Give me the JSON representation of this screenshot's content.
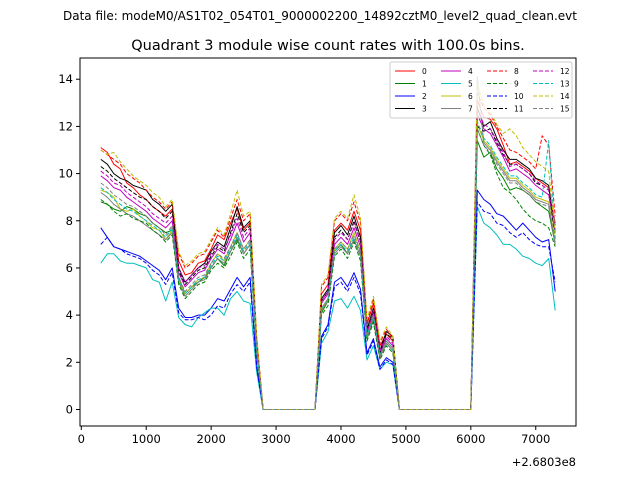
{
  "chart_data": {
    "type": "line",
    "suptitle": "Data file: modeM0/AS1T02_054T01_9000002200_14892cztM0_level2_quad_clean.evt",
    "title": "Quadrant 3 module wise count rates with 100.0s bins.",
    "xlabel": "",
    "ylabel": "",
    "x_offset_label": "+2.6803e8",
    "xlim": [
      -20,
      7620
    ],
    "ylim": [
      -0.7,
      14.9
    ],
    "xticks": [
      "0",
      "1000",
      "2000",
      "3000",
      "4000",
      "5000",
      "6000",
      "7000"
    ],
    "yticks": [
      "0",
      "2",
      "4",
      "6",
      "8",
      "10",
      "12",
      "14"
    ],
    "legend_position": "top-right",
    "grid": false,
    "x": [
      300,
      400,
      500,
      600,
      700,
      800,
      900,
      1000,
      1100,
      1200,
      1300,
      1400,
      1500,
      1600,
      1700,
      1800,
      1900,
      2000,
      2100,
      2200,
      2300,
      2400,
      2500,
      2600,
      2700,
      2800,
      2900,
      3000,
      3100,
      3200,
      3300,
      3400,
      3500,
      3600,
      3700,
      3800,
      3900,
      4000,
      4100,
      4200,
      4300,
      4400,
      4500,
      4600,
      4700,
      4800,
      4900,
      5000,
      5100,
      5200,
      5300,
      5400,
      5500,
      5600,
      5700,
      5800,
      5900,
      6000,
      6100,
      6200,
      6300,
      6400,
      6500,
      6600,
      6700,
      6800,
      6900,
      7000,
      7100,
      7200,
      7300
    ],
    "series": [
      {
        "name": "0",
        "color": "#ff0000",
        "dashed": false,
        "values": [
          11.1,
          10.9,
          10.4,
          10.2,
          9.6,
          9.4,
          9.1,
          8.9,
          8.6,
          8.4,
          8.2,
          8.5,
          6.3,
          5.7,
          5.8,
          6.2,
          6.3,
          6.8,
          7.4,
          7.2,
          7.9,
          8.5,
          7.6,
          7.9,
          3.0,
          0,
          0,
          0,
          0,
          0,
          0,
          0,
          0,
          0,
          4.9,
          5.3,
          7.6,
          7.9,
          7.6,
          8.4,
          7.6,
          3.6,
          4.5,
          2.7,
          3.2,
          2.9,
          0,
          0,
          0,
          0,
          0,
          0,
          0,
          0,
          0,
          0,
          0,
          0,
          13.1,
          12.4,
          12.3,
          11.9,
          11.2,
          10.4,
          10.5,
          10.3,
          10.1,
          9.8,
          9.6,
          9.4,
          7.9
        ]
      },
      {
        "name": "1",
        "color": "#008000",
        "dashed": false,
        "values": [
          8.8,
          8.7,
          8.5,
          8.4,
          8.6,
          8.5,
          8.3,
          8.2,
          7.9,
          7.7,
          7.5,
          7.6,
          5.6,
          4.9,
          5.2,
          5.4,
          5.6,
          6.0,
          6.4,
          6.1,
          6.7,
          7.2,
          6.6,
          7.0,
          2.6,
          0,
          0,
          0,
          0,
          0,
          0,
          0,
          0,
          0,
          4.1,
          4.6,
          6.7,
          7.0,
          6.6,
          7.2,
          6.5,
          3.0,
          3.8,
          2.2,
          2.8,
          2.5,
          0,
          0,
          0,
          0,
          0,
          0,
          0,
          0,
          0,
          0,
          0,
          0,
          11.4,
          10.7,
          10.9,
          10.2,
          9.8,
          9.3,
          9.4,
          9.3,
          9.1,
          8.8,
          8.6,
          8.4,
          7.0
        ]
      },
      {
        "name": "2",
        "color": "#0000ff",
        "dashed": false,
        "values": [
          7.7,
          7.3,
          6.9,
          6.8,
          6.7,
          6.6,
          6.5,
          6.3,
          6.1,
          5.9,
          5.5,
          6.0,
          4.3,
          3.9,
          3.9,
          4.0,
          4.0,
          4.3,
          4.7,
          4.6,
          5.1,
          5.6,
          5.2,
          5.6,
          1.9,
          0,
          0,
          0,
          0,
          0,
          0,
          0,
          0,
          0,
          3.1,
          3.6,
          5.4,
          5.6,
          5.2,
          5.8,
          5.1,
          2.4,
          3.0,
          1.8,
          2.2,
          2.0,
          0,
          0,
          0,
          0,
          0,
          0,
          0,
          0,
          0,
          0,
          0,
          0,
          9.3,
          8.9,
          8.7,
          8.3,
          8.2,
          7.9,
          7.6,
          7.9,
          7.6,
          7.3,
          7.1,
          7.2,
          5.0
        ]
      },
      {
        "name": "3",
        "color": "#000000",
        "dashed": false,
        "values": [
          10.6,
          10.4,
          10.0,
          9.8,
          9.7,
          9.5,
          9.4,
          9.3,
          8.9,
          8.7,
          8.4,
          8.7,
          6.0,
          5.4,
          5.7,
          6.0,
          6.2,
          6.7,
          7.1,
          6.9,
          7.7,
          8.6,
          7.7,
          8.0,
          2.8,
          0,
          0,
          0,
          0,
          0,
          0,
          0,
          0,
          0,
          4.7,
          5.1,
          7.5,
          7.8,
          7.4,
          8.2,
          7.3,
          3.4,
          4.3,
          2.5,
          3.3,
          3.1,
          0,
          0,
          0,
          0,
          0,
          0,
          0,
          0,
          0,
          0,
          0,
          0,
          12.8,
          12.0,
          12.2,
          11.5,
          11.0,
          10.6,
          10.6,
          10.4,
          10.2,
          9.8,
          9.7,
          9.5,
          7.5
        ]
      },
      {
        "name": "4",
        "color": "#bf00bf",
        "dashed": false,
        "values": [
          9.9,
          9.7,
          9.4,
          9.3,
          9.0,
          8.8,
          8.6,
          8.4,
          8.1,
          7.9,
          7.7,
          8.0,
          5.8,
          5.2,
          5.5,
          5.8,
          5.9,
          6.4,
          6.8,
          6.6,
          7.2,
          7.9,
          7.1,
          7.5,
          2.7,
          0,
          0,
          0,
          0,
          0,
          0,
          0,
          0,
          0,
          4.5,
          4.9,
          7.0,
          7.3,
          7.0,
          7.7,
          6.9,
          3.2,
          4.1,
          2.4,
          3.0,
          2.7,
          0,
          0,
          0,
          0,
          0,
          0,
          0,
          0,
          0,
          0,
          0,
          0,
          12.5,
          11.9,
          11.7,
          11.2,
          10.7,
          10.1,
          10.2,
          10.0,
          9.8,
          9.5,
          9.3,
          9.1,
          7.6
        ]
      },
      {
        "name": "5",
        "color": "#00bfbf",
        "dashed": false,
        "values": [
          6.2,
          6.6,
          6.6,
          6.3,
          6.2,
          6.2,
          6.1,
          6.0,
          5.5,
          5.4,
          4.6,
          5.4,
          3.9,
          3.6,
          3.5,
          3.9,
          4.1,
          4.3,
          4.3,
          4.0,
          4.7,
          5.0,
          4.6,
          4.5,
          1.6,
          0,
          0,
          0,
          0,
          0,
          0,
          0,
          0,
          0,
          2.8,
          3.3,
          4.6,
          4.7,
          4.3,
          4.8,
          4.2,
          2.1,
          2.7,
          1.7,
          2.0,
          1.9,
          0,
          0,
          0,
          0,
          0,
          0,
          0,
          0,
          0,
          0,
          0,
          0,
          8.6,
          7.9,
          7.7,
          7.4,
          7.0,
          7.0,
          6.8,
          6.5,
          6.4,
          6.2,
          6.1,
          6.4,
          4.2
        ]
      },
      {
        "name": "6",
        "color": "#bfbf00",
        "dashed": false,
        "values": [
          9.3,
          9.2,
          9.0,
          8.5,
          8.4,
          8.5,
          8.2,
          8.0,
          7.7,
          7.6,
          7.2,
          7.6,
          5.5,
          4.9,
          5.2,
          5.5,
          5.6,
          6.2,
          6.6,
          6.3,
          6.9,
          7.5,
          6.8,
          7.2,
          2.6,
          0,
          0,
          0,
          0,
          0,
          0,
          0,
          0,
          0,
          4.2,
          4.7,
          6.8,
          7.1,
          6.8,
          7.5,
          6.7,
          3.1,
          4.0,
          2.3,
          2.9,
          2.6,
          0,
          0,
          0,
          0,
          0,
          0,
          0,
          0,
          0,
          0,
          0,
          0,
          12.1,
          11.4,
          11.1,
          10.6,
          10.2,
          9.8,
          9.8,
          9.5,
          9.3,
          9.0,
          8.9,
          8.8,
          7.1
        ]
      },
      {
        "name": "7",
        "color": "#808080",
        "dashed": false,
        "values": [
          9.2,
          9.0,
          8.7,
          8.5,
          8.3,
          8.2,
          8.0,
          7.8,
          7.6,
          7.4,
          7.2,
          7.5,
          5.4,
          4.8,
          5.1,
          5.4,
          5.5,
          6.0,
          6.4,
          6.2,
          6.7,
          7.3,
          6.6,
          7.0,
          2.5,
          0,
          0,
          0,
          0,
          0,
          0,
          0,
          0,
          0,
          4.2,
          4.6,
          6.6,
          6.9,
          6.6,
          7.2,
          6.5,
          3.0,
          3.9,
          2.2,
          2.8,
          2.5,
          0,
          0,
          0,
          0,
          0,
          0,
          0,
          0,
          0,
          0,
          0,
          0,
          14.1,
          11.3,
          11.0,
          10.5,
          10.1,
          9.7,
          9.7,
          9.4,
          9.2,
          8.9,
          8.8,
          8.7,
          7.0
        ]
      },
      {
        "name": "8",
        "color": "#ff0000",
        "dashed": true,
        "values": [
          11.0,
          10.8,
          10.6,
          10.4,
          10.0,
          9.8,
          9.6,
          9.3,
          9.0,
          8.8,
          8.5,
          8.8,
          6.6,
          6.0,
          6.2,
          6.5,
          6.6,
          7.1,
          7.6,
          7.3,
          8.1,
          8.9,
          8.0,
          8.3,
          3.1,
          0,
          0,
          0,
          0,
          0,
          0,
          0,
          0,
          0,
          5.2,
          5.6,
          8.0,
          8.3,
          8.0,
          8.8,
          7.9,
          3.7,
          4.7,
          2.8,
          3.4,
          3.0,
          0,
          0,
          0,
          0,
          0,
          0,
          0,
          0,
          0,
          0,
          0,
          0,
          13.4,
          12.8,
          12.5,
          12.0,
          11.5,
          11.0,
          10.9,
          10.7,
          10.5,
          10.2,
          11.6,
          11.2,
          8.2
        ]
      },
      {
        "name": "9",
        "color": "#008000",
        "dashed": true,
        "values": [
          8.9,
          8.7,
          8.4,
          8.2,
          8.3,
          8.1,
          8.0,
          7.9,
          7.6,
          7.4,
          7.1,
          7.4,
          5.3,
          4.7,
          5.0,
          5.3,
          5.4,
          5.9,
          6.2,
          6.0,
          6.5,
          7.1,
          6.4,
          6.8,
          2.4,
          0,
          0,
          0,
          0,
          0,
          0,
          0,
          0,
          0,
          4.0,
          4.4,
          6.5,
          6.8,
          6.4,
          7.1,
          6.3,
          2.9,
          3.7,
          2.1,
          2.7,
          2.4,
          0,
          0,
          0,
          0,
          0,
          0,
          0,
          0,
          0,
          0,
          0,
          0,
          11.9,
          11.2,
          10.8,
          10.0,
          9.4,
          9.2,
          8.9,
          8.5,
          8.2,
          8.0,
          7.9,
          7.7,
          6.9
        ]
      },
      {
        "name": "10",
        "color": "#0000ff",
        "dashed": true,
        "values": [
          7.0,
          7.3,
          6.9,
          6.8,
          6.6,
          6.5,
          6.4,
          6.2,
          5.9,
          5.7,
          5.3,
          5.8,
          4.1,
          3.8,
          3.8,
          3.9,
          3.8,
          4.0,
          4.4,
          4.3,
          4.9,
          5.3,
          5.0,
          5.4,
          1.8,
          0,
          0,
          0,
          0,
          0,
          0,
          0,
          0,
          0,
          3.0,
          3.5,
          5.2,
          5.4,
          5.0,
          5.6,
          4.9,
          2.3,
          2.9,
          1.7,
          2.1,
          1.9,
          0,
          0,
          0,
          0,
          0,
          0,
          0,
          0,
          0,
          0,
          0,
          0,
          8.8,
          8.4,
          8.3,
          7.9,
          7.8,
          7.5,
          7.3,
          7.5,
          7.2,
          7.0,
          6.9,
          6.9,
          5.4
        ]
      },
      {
        "name": "11",
        "color": "#000000",
        "dashed": true,
        "values": [
          10.3,
          10.1,
          9.8,
          9.6,
          9.4,
          9.2,
          9.0,
          8.9,
          8.6,
          8.4,
          8.1,
          8.4,
          5.9,
          5.3,
          5.6,
          5.9,
          6.0,
          6.5,
          6.9,
          6.7,
          7.5,
          8.3,
          7.5,
          7.8,
          2.7,
          0,
          0,
          0,
          0,
          0,
          0,
          0,
          0,
          0,
          4.6,
          5.0,
          7.3,
          7.6,
          7.2,
          8.0,
          7.1,
          3.3,
          4.2,
          2.4,
          3.2,
          3.0,
          0,
          0,
          0,
          0,
          0,
          0,
          0,
          0,
          0,
          0,
          0,
          0,
          12.0,
          11.8,
          11.9,
          11.3,
          10.8,
          10.4,
          10.4,
          10.2,
          10.0,
          9.6,
          9.5,
          9.3,
          7.3
        ]
      },
      {
        "name": "12",
        "color": "#bf00bf",
        "dashed": true,
        "values": [
          10.1,
          9.9,
          9.6,
          9.5,
          9.2,
          9.0,
          8.8,
          8.6,
          8.3,
          8.1,
          7.9,
          8.2,
          6.0,
          5.4,
          5.7,
          6.0,
          6.1,
          6.6,
          7.0,
          6.8,
          7.4,
          8.1,
          7.3,
          7.7,
          2.8,
          0,
          0,
          0,
          0,
          0,
          0,
          0,
          0,
          0,
          4.6,
          5.0,
          7.2,
          7.5,
          7.2,
          7.9,
          7.1,
          3.3,
          4.2,
          2.5,
          3.1,
          2.8,
          0,
          0,
          0,
          0,
          0,
          0,
          0,
          0,
          0,
          0,
          0,
          0,
          12.7,
          12.1,
          11.9,
          11.4,
          10.9,
          10.3,
          10.4,
          10.2,
          10.0,
          9.7,
          9.5,
          9.3,
          7.8
        ]
      },
      {
        "name": "13",
        "color": "#00bfbf",
        "dashed": true,
        "values": [
          9.4,
          9.2,
          8.9,
          8.7,
          8.5,
          8.4,
          8.2,
          8.0,
          7.8,
          7.6,
          7.3,
          7.7,
          5.5,
          4.9,
          5.2,
          5.5,
          5.6,
          6.1,
          6.5,
          6.3,
          6.8,
          7.4,
          6.7,
          7.1,
          2.6,
          0,
          0,
          0,
          0,
          0,
          0,
          0,
          0,
          0,
          4.3,
          4.7,
          6.7,
          7.0,
          6.7,
          7.3,
          6.6,
          3.1,
          4.0,
          2.3,
          2.9,
          2.6,
          0,
          0,
          0,
          0,
          0,
          0,
          0,
          0,
          0,
          0,
          0,
          0,
          12.2,
          11.5,
          11.2,
          10.7,
          10.3,
          9.9,
          9.9,
          9.6,
          9.4,
          9.1,
          9.0,
          11.4,
          7.2
        ]
      },
      {
        "name": "14",
        "color": "#bfbf00",
        "dashed": true,
        "values": [
          11.0,
          10.8,
          10.9,
          10.5,
          10.2,
          9.9,
          9.7,
          9.5,
          9.2,
          9.0,
          8.6,
          8.9,
          6.7,
          6.1,
          6.3,
          6.6,
          6.7,
          7.2,
          7.7,
          7.4,
          8.3,
          9.3,
          8.2,
          8.4,
          3.2,
          0,
          0,
          0,
          0,
          0,
          0,
          0,
          0,
          0,
          5.3,
          5.7,
          8.1,
          8.4,
          8.1,
          9.1,
          8.1,
          3.8,
          4.8,
          2.9,
          3.5,
          3.1,
          0,
          0,
          0,
          0,
          0,
          0,
          0,
          0,
          0,
          0,
          0,
          0,
          13.8,
          12.9,
          12.6,
          12.1,
          11.7,
          11.9,
          11.6,
          11.1,
          10.8,
          10.5,
          10.3,
          10.1,
          7.4
        ]
      },
      {
        "name": "15",
        "color": "#808080",
        "dashed": true,
        "values": [
          9.6,
          9.4,
          9.1,
          8.9,
          8.7,
          8.6,
          8.4,
          8.2,
          7.9,
          7.7,
          7.4,
          7.8,
          5.6,
          5.0,
          5.3,
          5.6,
          5.7,
          6.2,
          6.6,
          6.4,
          6.9,
          7.5,
          6.8,
          7.2,
          2.6,
          0,
          0,
          0,
          0,
          0,
          0,
          0,
          0,
          0,
          4.3,
          4.7,
          6.8,
          7.1,
          6.8,
          7.4,
          6.7,
          3.1,
          4.0,
          2.3,
          2.9,
          2.6,
          0,
          0,
          0,
          0,
          0,
          0,
          0,
          0,
          0,
          0,
          0,
          0,
          11.9,
          11.2,
          10.9,
          10.4,
          10.0,
          9.6,
          9.6,
          9.3,
          9.1,
          8.8,
          8.7,
          8.6,
          7.0
        ]
      }
    ]
  }
}
